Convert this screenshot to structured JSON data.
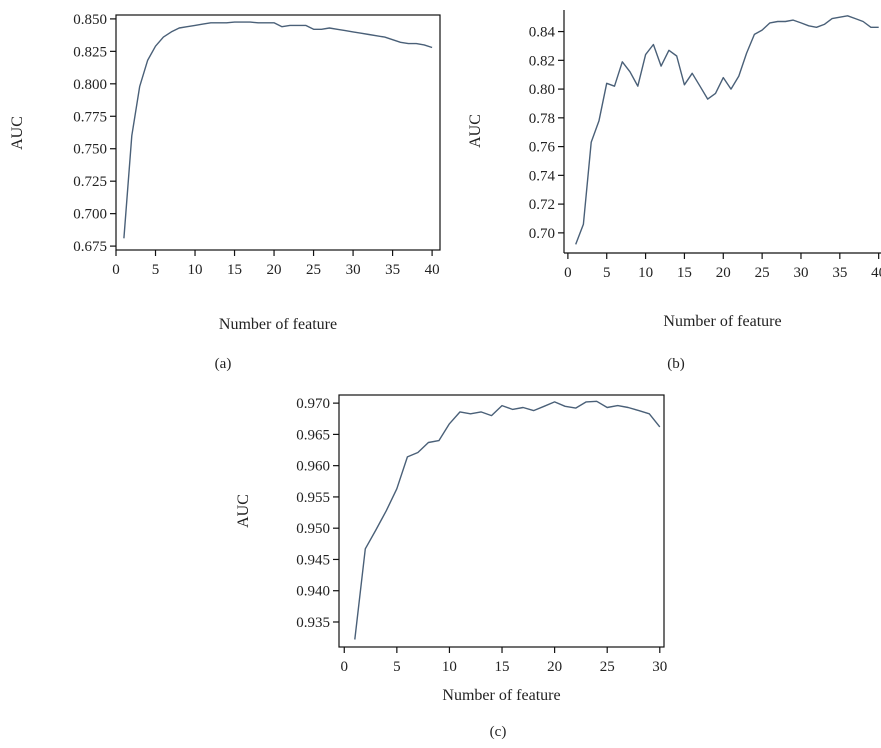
{
  "chart_data": [
    {
      "type": "line",
      "caption": "(a)",
      "xlabel": "Number of feature",
      "ylabel": "AUC",
      "xlim": [
        0,
        41
      ],
      "ylim": [
        0.672,
        0.853
      ],
      "xticks": [
        0,
        5,
        10,
        15,
        20,
        25,
        30,
        35,
        40
      ],
      "yticks": [
        0.675,
        0.7,
        0.725,
        0.75,
        0.775,
        0.8,
        0.825,
        0.85
      ],
      "ytick_decimals": 3,
      "line_color": "#4a6078",
      "series": [
        {
          "x": [
            1,
            2,
            3,
            4,
            5,
            6,
            7,
            8,
            9,
            10,
            11,
            12,
            13,
            14,
            15,
            16,
            17,
            18,
            19,
            20,
            21,
            22,
            23,
            24,
            25,
            26,
            27,
            28,
            29,
            30,
            31,
            32,
            33,
            34,
            35,
            36,
            37,
            38,
            39,
            40
          ],
          "y": [
            0.681,
            0.76,
            0.798,
            0.818,
            0.829,
            0.836,
            0.84,
            0.843,
            0.844,
            0.845,
            0.846,
            0.847,
            0.847,
            0.847,
            0.8475,
            0.8475,
            0.8475,
            0.847,
            0.847,
            0.847,
            0.844,
            0.845,
            0.845,
            0.845,
            0.842,
            0.842,
            0.843,
            0.842,
            0.841,
            0.84,
            0.839,
            0.838,
            0.837,
            0.836,
            0.834,
            0.832,
            0.831,
            0.831,
            0.83,
            0.828
          ]
        }
      ]
    },
    {
      "type": "line",
      "caption": "(b)",
      "xlabel": "Number of feature",
      "ylabel": "AUC",
      "xlim": [
        -0.5,
        40.3
      ],
      "ylim": [
        0.686,
        0.855
      ],
      "xticks": [
        0,
        5,
        10,
        15,
        20,
        25,
        30,
        35,
        40
      ],
      "yticks": [
        0.7,
        0.72,
        0.74,
        0.76,
        0.78,
        0.8,
        0.82,
        0.84
      ],
      "ytick_decimals": 2,
      "line_color": "#4a6078",
      "series": [
        {
          "x": [
            1,
            2,
            3,
            4,
            5,
            6,
            7,
            8,
            9,
            10,
            11,
            12,
            13,
            14,
            15,
            16,
            17,
            18,
            19,
            20,
            21,
            22,
            23,
            24,
            25,
            26,
            27,
            28,
            29,
            30,
            31,
            32,
            33,
            34,
            35,
            36,
            37,
            38,
            39,
            40
          ],
          "y": [
            0.692,
            0.706,
            0.763,
            0.778,
            0.804,
            0.802,
            0.819,
            0.812,
            0.802,
            0.824,
            0.831,
            0.816,
            0.827,
            0.823,
            0.803,
            0.811,
            0.802,
            0.793,
            0.797,
            0.808,
            0.8,
            0.809,
            0.825,
            0.838,
            0.841,
            0.846,
            0.847,
            0.847,
            0.848,
            0.846,
            0.844,
            0.843,
            0.845,
            0.849,
            0.85,
            0.851,
            0.849,
            0.847,
            0.843,
            0.843
          ]
        }
      ]
    },
    {
      "type": "line",
      "caption": "(c)",
      "xlabel": "Number of feature",
      "ylabel": "AUC",
      "xlim": [
        -0.5,
        30.4
      ],
      "ylim": [
        0.931,
        0.9713
      ],
      "xticks": [
        0,
        5,
        10,
        15,
        20,
        25,
        30
      ],
      "yticks": [
        0.935,
        0.94,
        0.945,
        0.95,
        0.955,
        0.96,
        0.965,
        0.97
      ],
      "ytick_decimals": 3,
      "line_color": "#4a6078",
      "series": [
        {
          "x": [
            1,
            2,
            3,
            4,
            5,
            6,
            7,
            8,
            9,
            10,
            11,
            12,
            13,
            14,
            15,
            16,
            17,
            18,
            19,
            20,
            21,
            22,
            23,
            24,
            25,
            26,
            27,
            28,
            29,
            30
          ],
          "y": [
            0.9322,
            0.9467,
            0.9497,
            0.9528,
            0.9563,
            0.9614,
            0.9621,
            0.9637,
            0.964,
            0.9667,
            0.9686,
            0.9683,
            0.9686,
            0.968,
            0.9696,
            0.969,
            0.9693,
            0.9688,
            0.9695,
            0.9702,
            0.9695,
            0.9692,
            0.9702,
            0.9703,
            0.9693,
            0.9696,
            0.9693,
            0.9688,
            0.9683,
            0.9662
          ]
        }
      ]
    }
  ]
}
